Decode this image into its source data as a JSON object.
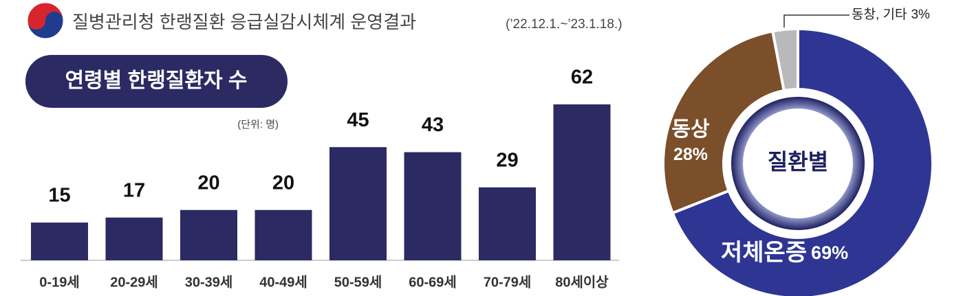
{
  "header": {
    "title": "질병관리청 한랭질환 응급실감시체계 운영결과",
    "period": "(’22.12.1.~’23.1.18.)"
  },
  "chart_data": [
    {
      "type": "bar",
      "title": "연령별 한랭질환자 수",
      "unit_note": "(단위: 명)",
      "categories": [
        "0-19세",
        "20-29세",
        "30-39세",
        "40-49세",
        "50-59세",
        "60-69세",
        "70-79세",
        "80세이상"
      ],
      "values": [
        15,
        17,
        20,
        20,
        45,
        43,
        29,
        62
      ],
      "color": "#2b2a63"
    },
    {
      "type": "donut",
      "center_label": "질환별",
      "categories": [
        "저체온증",
        "동상",
        "동창, 기타"
      ],
      "values": [
        69,
        28,
        3
      ],
      "value_labels": [
        "69%",
        "28%",
        "3%"
      ],
      "colors": [
        "#2e3592",
        "#7a4f2a",
        "#b9b9bb"
      ]
    }
  ]
}
